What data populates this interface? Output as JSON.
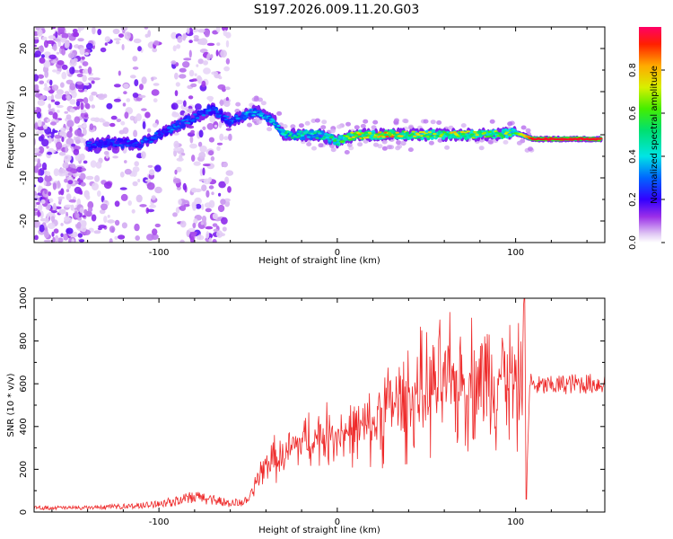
{
  "title": "S197.2026.009.11.20.G03",
  "colors": {
    "snr_line": "#ee2a2a",
    "frame": "#000000",
    "background": "#ffffff"
  },
  "chart_data": [
    {
      "type": "heatmap",
      "name": "spectrogram",
      "xlabel": "Height of straight line (km)",
      "ylabel": "Frequency (Hz)",
      "xlim": [
        -170,
        150
      ],
      "ylim": [
        -25,
        25
      ],
      "xticks": [
        -100,
        0,
        100
      ],
      "xtick_labels": [
        "-100",
        "0",
        "100"
      ],
      "yticks": [
        -20,
        -10,
        0,
        10,
        20
      ],
      "ytick_labels": [
        "-20",
        "-10",
        "0",
        "10",
        "20"
      ],
      "colorbar": {
        "label": "Normalized spectral amplitude",
        "range": [
          0,
          1
        ],
        "ticks": [
          0.0,
          0.2,
          0.4,
          0.6,
          0.8
        ],
        "tick_labels": [
          "0.0",
          "0.2",
          "0.4",
          "0.6",
          "0.8"
        ]
      },
      "ridge": {
        "x": [
          -140,
          -130,
          -120,
          -110,
          -100,
          -90,
          -80,
          -70,
          -60,
          -50,
          -45,
          -40,
          -35,
          -30,
          -20,
          -10,
          0,
          10,
          20,
          30,
          40,
          50,
          60,
          70,
          80,
          90,
          100,
          110,
          120,
          130,
          140,
          148
        ],
        "freq": [
          -2.5,
          -2,
          -2,
          -2,
          0,
          2,
          4,
          6,
          3,
          5,
          5.5,
          4,
          3,
          0,
          0,
          0,
          -1.5,
          0,
          0,
          0,
          0,
          0,
          0,
          0,
          0,
          0,
          0.5,
          -1,
          -1,
          -1,
          -1,
          -1
        ],
        "amplitude": [
          0.3,
          0.3,
          0.28,
          0.3,
          0.3,
          0.32,
          0.32,
          0.32,
          0.3,
          0.4,
          0.42,
          0.42,
          0.42,
          0.5,
          0.5,
          0.5,
          0.6,
          0.8,
          0.7,
          0.85,
          0.7,
          0.7,
          0.7,
          0.75,
          0.7,
          0.7,
          0.6,
          0.95,
          0.95,
          0.95,
          0.95,
          0.95
        ]
      }
    },
    {
      "type": "line",
      "name": "snr",
      "xlabel": "Height of straight line (km)",
      "ylabel": "SNR (10 * v/v)",
      "xlim": [
        -170,
        150
      ],
      "ylim": [
        0,
        1000
      ],
      "xticks": [
        -100,
        0,
        100
      ],
      "xtick_labels": [
        "-100",
        "0",
        "100"
      ],
      "yticks": [
        0,
        200,
        400,
        600,
        800,
        1000
      ],
      "ytick_labels": [
        "0",
        "200",
        "400",
        "600",
        "800",
        "1000"
      ],
      "series": [
        {
          "name": "SNR",
          "x": [
            -170,
            -140,
            -110,
            -90,
            -80,
            -70,
            -60,
            -50,
            -45,
            -40,
            -35,
            -30,
            -25,
            -20,
            -10,
            0,
            10,
            20,
            25,
            30,
            40,
            50,
            60,
            70,
            80,
            90,
            95,
            100,
            103,
            105,
            106,
            108,
            110,
            120,
            130,
            140,
            150
          ],
          "y": [
            20,
            20,
            30,
            50,
            70,
            60,
            40,
            50,
            150,
            220,
            250,
            250,
            300,
            330,
            350,
            370,
            380,
            400,
            480,
            500,
            530,
            560,
            600,
            600,
            620,
            640,
            650,
            580,
            560,
            1000,
            60,
            620,
            590,
            590,
            600,
            600,
            600
          ]
        }
      ]
    }
  ]
}
